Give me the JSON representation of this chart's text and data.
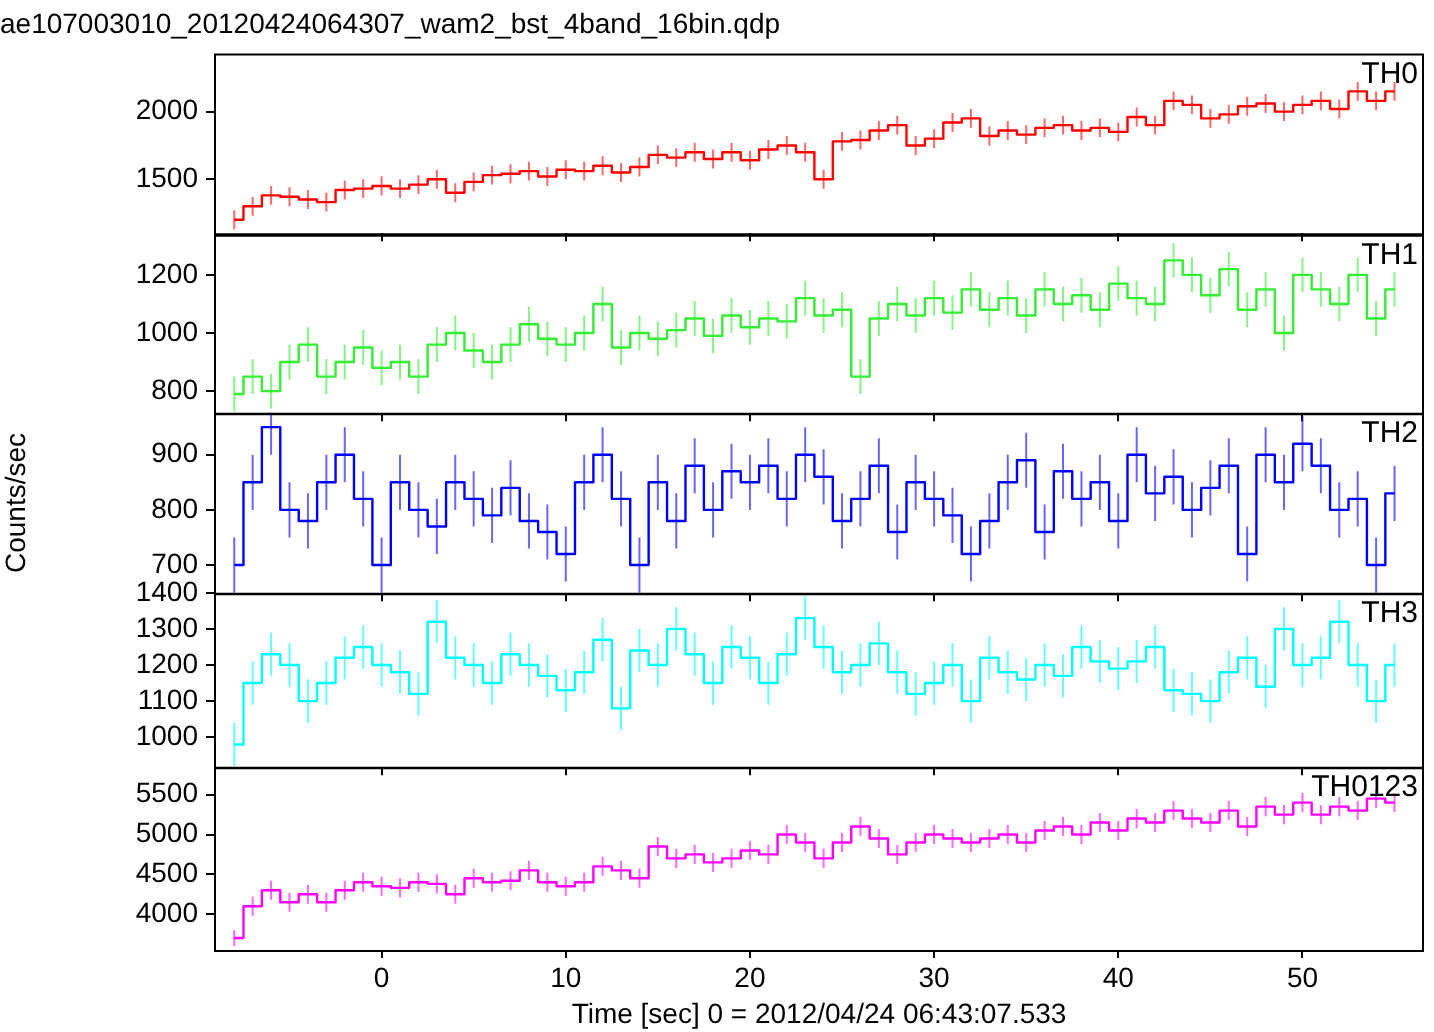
{
  "chart_data": [
    {
      "type": "step",
      "title": "ae107003010_20120424064307_wam2_bst_4band_16bin.qdp",
      "x": [
        -8,
        -7,
        -6,
        -5,
        -4,
        -3,
        -2,
        -1,
        0,
        1,
        2,
        3,
        4,
        5,
        6,
        7,
        8,
        9,
        10,
        11,
        12,
        13,
        14,
        15,
        16,
        17,
        18,
        19,
        20,
        21,
        22,
        23,
        24,
        25,
        26,
        27,
        28,
        29,
        30,
        31,
        32,
        33,
        34,
        35,
        36,
        37,
        38,
        39,
        40,
        41,
        42,
        43,
        44,
        45,
        46,
        47,
        48,
        49,
        50,
        51,
        52,
        53,
        54,
        55
      ],
      "series": [
        {
          "name": "TH0",
          "color": "#ff0000",
          "values": [
            1200,
            1300,
            1380,
            1370,
            1350,
            1330,
            1420,
            1430,
            1450,
            1430,
            1460,
            1500,
            1400,
            1480,
            1530,
            1540,
            1560,
            1520,
            1570,
            1560,
            1600,
            1550,
            1590,
            1680,
            1660,
            1700,
            1650,
            1700,
            1640,
            1720,
            1750,
            1700,
            1500,
            1780,
            1790,
            1860,
            1900,
            1750,
            1800,
            1920,
            1950,
            1820,
            1860,
            1830,
            1880,
            1900,
            1860,
            1880,
            1850,
            1960,
            1900,
            2080,
            2050,
            1950,
            1980,
            2040,
            2060,
            2000,
            2050,
            2080,
            2020,
            2150,
            2080,
            2150
          ],
          "errors": [
            70,
            70,
            70,
            70,
            70,
            70,
            70,
            70,
            70,
            70,
            70,
            70,
            70,
            70,
            70,
            70,
            70,
            70,
            70,
            70,
            70,
            70,
            70,
            70,
            70,
            70,
            70,
            70,
            70,
            70,
            70,
            70,
            70,
            70,
            70,
            70,
            70,
            70,
            70,
            70,
            70,
            70,
            70,
            70,
            70,
            70,
            70,
            70,
            70,
            70,
            70,
            70,
            70,
            70,
            70,
            70,
            70,
            70,
            70,
            70,
            70,
            70,
            70,
            70
          ]
        }
      ],
      "xlim": [
        -9.1,
        56.6
      ],
      "xticks": [
        0,
        10,
        20,
        30,
        40,
        50
      ],
      "ylim": [
        1100,
        2430
      ],
      "yticks": [
        1500,
        2000
      ],
      "tick_labels": "y"
    },
    {
      "type": "step",
      "x": [
        -8,
        -7,
        -6,
        -5,
        -4,
        -3,
        -2,
        -1,
        0,
        1,
        2,
        3,
        4,
        5,
        6,
        7,
        8,
        9,
        10,
        11,
        12,
        13,
        14,
        15,
        16,
        17,
        18,
        19,
        20,
        21,
        22,
        23,
        24,
        25,
        26,
        27,
        28,
        29,
        30,
        31,
        32,
        33,
        34,
        35,
        36,
        37,
        38,
        39,
        40,
        41,
        42,
        43,
        44,
        45,
        46,
        47,
        48,
        49,
        50,
        51,
        52,
        53,
        54,
        55
      ],
      "series": [
        {
          "name": "TH1",
          "color": "#33ee33",
          "values": [
            790,
            850,
            800,
            900,
            960,
            850,
            900,
            950,
            880,
            900,
            850,
            960,
            1000,
            940,
            900,
            960,
            1030,
            980,
            960,
            1000,
            1100,
            950,
            1000,
            980,
            1010,
            1050,
            990,
            1060,
            1020,
            1050,
            1040,
            1120,
            1060,
            1080,
            850,
            1050,
            1100,
            1060,
            1120,
            1070,
            1150,
            1080,
            1120,
            1060,
            1150,
            1100,
            1130,
            1080,
            1170,
            1120,
            1100,
            1250,
            1200,
            1130,
            1220,
            1080,
            1150,
            1000,
            1200,
            1150,
            1100,
            1200,
            1050,
            1150
          ],
          "errors": [
            60,
            60,
            60,
            60,
            60,
            60,
            60,
            60,
            60,
            60,
            60,
            60,
            60,
            60,
            60,
            60,
            60,
            60,
            60,
            60,
            60,
            60,
            60,
            60,
            60,
            60,
            60,
            60,
            60,
            60,
            60,
            60,
            60,
            60,
            60,
            60,
            60,
            60,
            60,
            60,
            60,
            60,
            60,
            60,
            60,
            60,
            60,
            60,
            60,
            60,
            60,
            60,
            60,
            60,
            60,
            60,
            60,
            60,
            60,
            60,
            60,
            60,
            60,
            60
          ]
        }
      ],
      "xlim": [
        -9.1,
        56.6
      ],
      "xticks": [
        0,
        10,
        20,
        30,
        40,
        50
      ],
      "ylim": [
        724,
        1338
      ],
      "yticks": [
        800,
        1000,
        1200
      ],
      "tick_labels": "y"
    },
    {
      "type": "step",
      "ylabel": "Counts/sec",
      "x": [
        -8,
        -7,
        -6,
        -5,
        -4,
        -3,
        -2,
        -1,
        0,
        1,
        2,
        3,
        4,
        5,
        6,
        7,
        8,
        9,
        10,
        11,
        12,
        13,
        14,
        15,
        16,
        17,
        18,
        19,
        20,
        21,
        22,
        23,
        24,
        25,
        26,
        27,
        28,
        29,
        30,
        31,
        32,
        33,
        34,
        35,
        36,
        37,
        38,
        39,
        40,
        41,
        42,
        43,
        44,
        45,
        46,
        47,
        48,
        49,
        50,
        51,
        52,
        53,
        54,
        55
      ],
      "series": [
        {
          "name": "TH2",
          "color": "#0000ff",
          "values": [
            700,
            850,
            950,
            800,
            780,
            850,
            900,
            820,
            700,
            850,
            800,
            770,
            850,
            820,
            790,
            840,
            780,
            760,
            720,
            850,
            900,
            820,
            700,
            850,
            780,
            880,
            800,
            870,
            850,
            880,
            820,
            900,
            860,
            780,
            820,
            880,
            760,
            850,
            820,
            790,
            720,
            780,
            850,
            890,
            760,
            870,
            820,
            850,
            780,
            900,
            830,
            860,
            800,
            840,
            880,
            720,
            900,
            850,
            920,
            880,
            800,
            820,
            700,
            830
          ],
          "errors": [
            50,
            50,
            50,
            50,
            50,
            50,
            50,
            50,
            50,
            50,
            50,
            50,
            50,
            50,
            50,
            50,
            50,
            50,
            50,
            50,
            50,
            50,
            50,
            50,
            50,
            50,
            50,
            50,
            50,
            50,
            50,
            50,
            50,
            50,
            50,
            50,
            50,
            50,
            50,
            50,
            50,
            50,
            50,
            50,
            50,
            50,
            50,
            50,
            50,
            50,
            50,
            50,
            50,
            50,
            50,
            50,
            50,
            50,
            50,
            50,
            50,
            50,
            50,
            50
          ]
        }
      ],
      "xlim": [
        -9.1,
        56.6
      ],
      "xticks": [
        0,
        10,
        20,
        30,
        40,
        50
      ],
      "ylim": [
        649,
        976
      ],
      "yticks": [
        700,
        800,
        900
      ],
      "tick_labels": "y"
    },
    {
      "type": "step",
      "x": [
        -8,
        -7,
        -6,
        -5,
        -4,
        -3,
        -2,
        -1,
        0,
        1,
        2,
        3,
        4,
        5,
        6,
        7,
        8,
        9,
        10,
        11,
        12,
        13,
        14,
        15,
        16,
        17,
        18,
        19,
        20,
        21,
        22,
        23,
        24,
        25,
        26,
        27,
        28,
        29,
        30,
        31,
        32,
        33,
        34,
        35,
        36,
        37,
        38,
        39,
        40,
        41,
        42,
        43,
        44,
        45,
        46,
        47,
        48,
        49,
        50,
        51,
        52,
        53,
        54,
        55
      ],
      "series": [
        {
          "name": "TH3",
          "color": "#00ffff",
          "values": [
            980,
            1150,
            1230,
            1200,
            1100,
            1150,
            1220,
            1250,
            1200,
            1180,
            1120,
            1320,
            1220,
            1200,
            1150,
            1230,
            1200,
            1170,
            1130,
            1180,
            1270,
            1080,
            1240,
            1200,
            1300,
            1230,
            1150,
            1250,
            1220,
            1150,
            1230,
            1330,
            1250,
            1180,
            1200,
            1260,
            1180,
            1120,
            1150,
            1200,
            1100,
            1220,
            1180,
            1160,
            1200,
            1170,
            1250,
            1210,
            1190,
            1210,
            1250,
            1130,
            1120,
            1100,
            1180,
            1220,
            1140,
            1300,
            1200,
            1220,
            1320,
            1200,
            1100,
            1200
          ],
          "errors": [
            60,
            60,
            60,
            60,
            60,
            60,
            60,
            60,
            60,
            60,
            60,
            60,
            60,
            60,
            60,
            60,
            60,
            60,
            60,
            60,
            60,
            60,
            60,
            60,
            60,
            60,
            60,
            60,
            60,
            60,
            60,
            60,
            60,
            60,
            60,
            60,
            60,
            60,
            60,
            60,
            60,
            60,
            60,
            60,
            60,
            60,
            60,
            60,
            60,
            60,
            60,
            60,
            60,
            60,
            60,
            60,
            60,
            60,
            60,
            60,
            60,
            60,
            60,
            60
          ]
        }
      ],
      "xlim": [
        -9.1,
        56.6
      ],
      "xticks": [
        0,
        10,
        20,
        30,
        40,
        50
      ],
      "ylim": [
        917,
        1400
      ],
      "yticks": [
        1000,
        1100,
        1200,
        1300,
        1400
      ],
      "tick_labels": "y"
    },
    {
      "type": "step",
      "xlabel": "Time [sec] 0 = 2012/04/24 06:43:07.533",
      "x": [
        -8,
        -7,
        -6,
        -5,
        -4,
        -3,
        -2,
        -1,
        0,
        1,
        2,
        3,
        4,
        5,
        6,
        7,
        8,
        9,
        10,
        11,
        12,
        13,
        14,
        15,
        16,
        17,
        18,
        19,
        20,
        21,
        22,
        23,
        24,
        25,
        26,
        27,
        28,
        29,
        30,
        31,
        32,
        33,
        34,
        35,
        36,
        37,
        38,
        39,
        40,
        41,
        42,
        43,
        44,
        45,
        46,
        47,
        48,
        49,
        50,
        51,
        52,
        53,
        54,
        55
      ],
      "series": [
        {
          "name": "TH0123",
          "color": "#ff00ff",
          "values": [
            3700,
            4100,
            4300,
            4150,
            4250,
            4150,
            4300,
            4400,
            4350,
            4330,
            4400,
            4380,
            4250,
            4450,
            4400,
            4420,
            4550,
            4400,
            4350,
            4400,
            4600,
            4550,
            4450,
            4850,
            4700,
            4750,
            4650,
            4700,
            4800,
            4750,
            5000,
            4900,
            4700,
            4900,
            5100,
            4950,
            4750,
            4900,
            5000,
            4950,
            4900,
            4950,
            5000,
            4900,
            5050,
            5100,
            5000,
            5150,
            5050,
            5200,
            5150,
            5300,
            5200,
            5150,
            5300,
            5100,
            5350,
            5250,
            5400,
            5250,
            5350,
            5300,
            5450,
            5400
          ],
          "errors": [
            100,
            120,
            120,
            120,
            120,
            120,
            120,
            120,
            120,
            120,
            120,
            120,
            120,
            120,
            120,
            120,
            120,
            120,
            120,
            120,
            120,
            120,
            120,
            120,
            120,
            120,
            120,
            120,
            120,
            120,
            120,
            120,
            120,
            120,
            120,
            120,
            120,
            120,
            120,
            120,
            120,
            120,
            120,
            120,
            120,
            120,
            120,
            120,
            120,
            120,
            120,
            120,
            120,
            120,
            120,
            120,
            120,
            120,
            120,
            120,
            120,
            120,
            120,
            120
          ]
        }
      ],
      "xlim": [
        -9.1,
        56.6
      ],
      "xticks": [
        0,
        10,
        20,
        30,
        40,
        50
      ],
      "ylim": [
        3550,
        5850
      ],
      "yticks": [
        4000,
        4500,
        5000,
        5500
      ]
    }
  ]
}
